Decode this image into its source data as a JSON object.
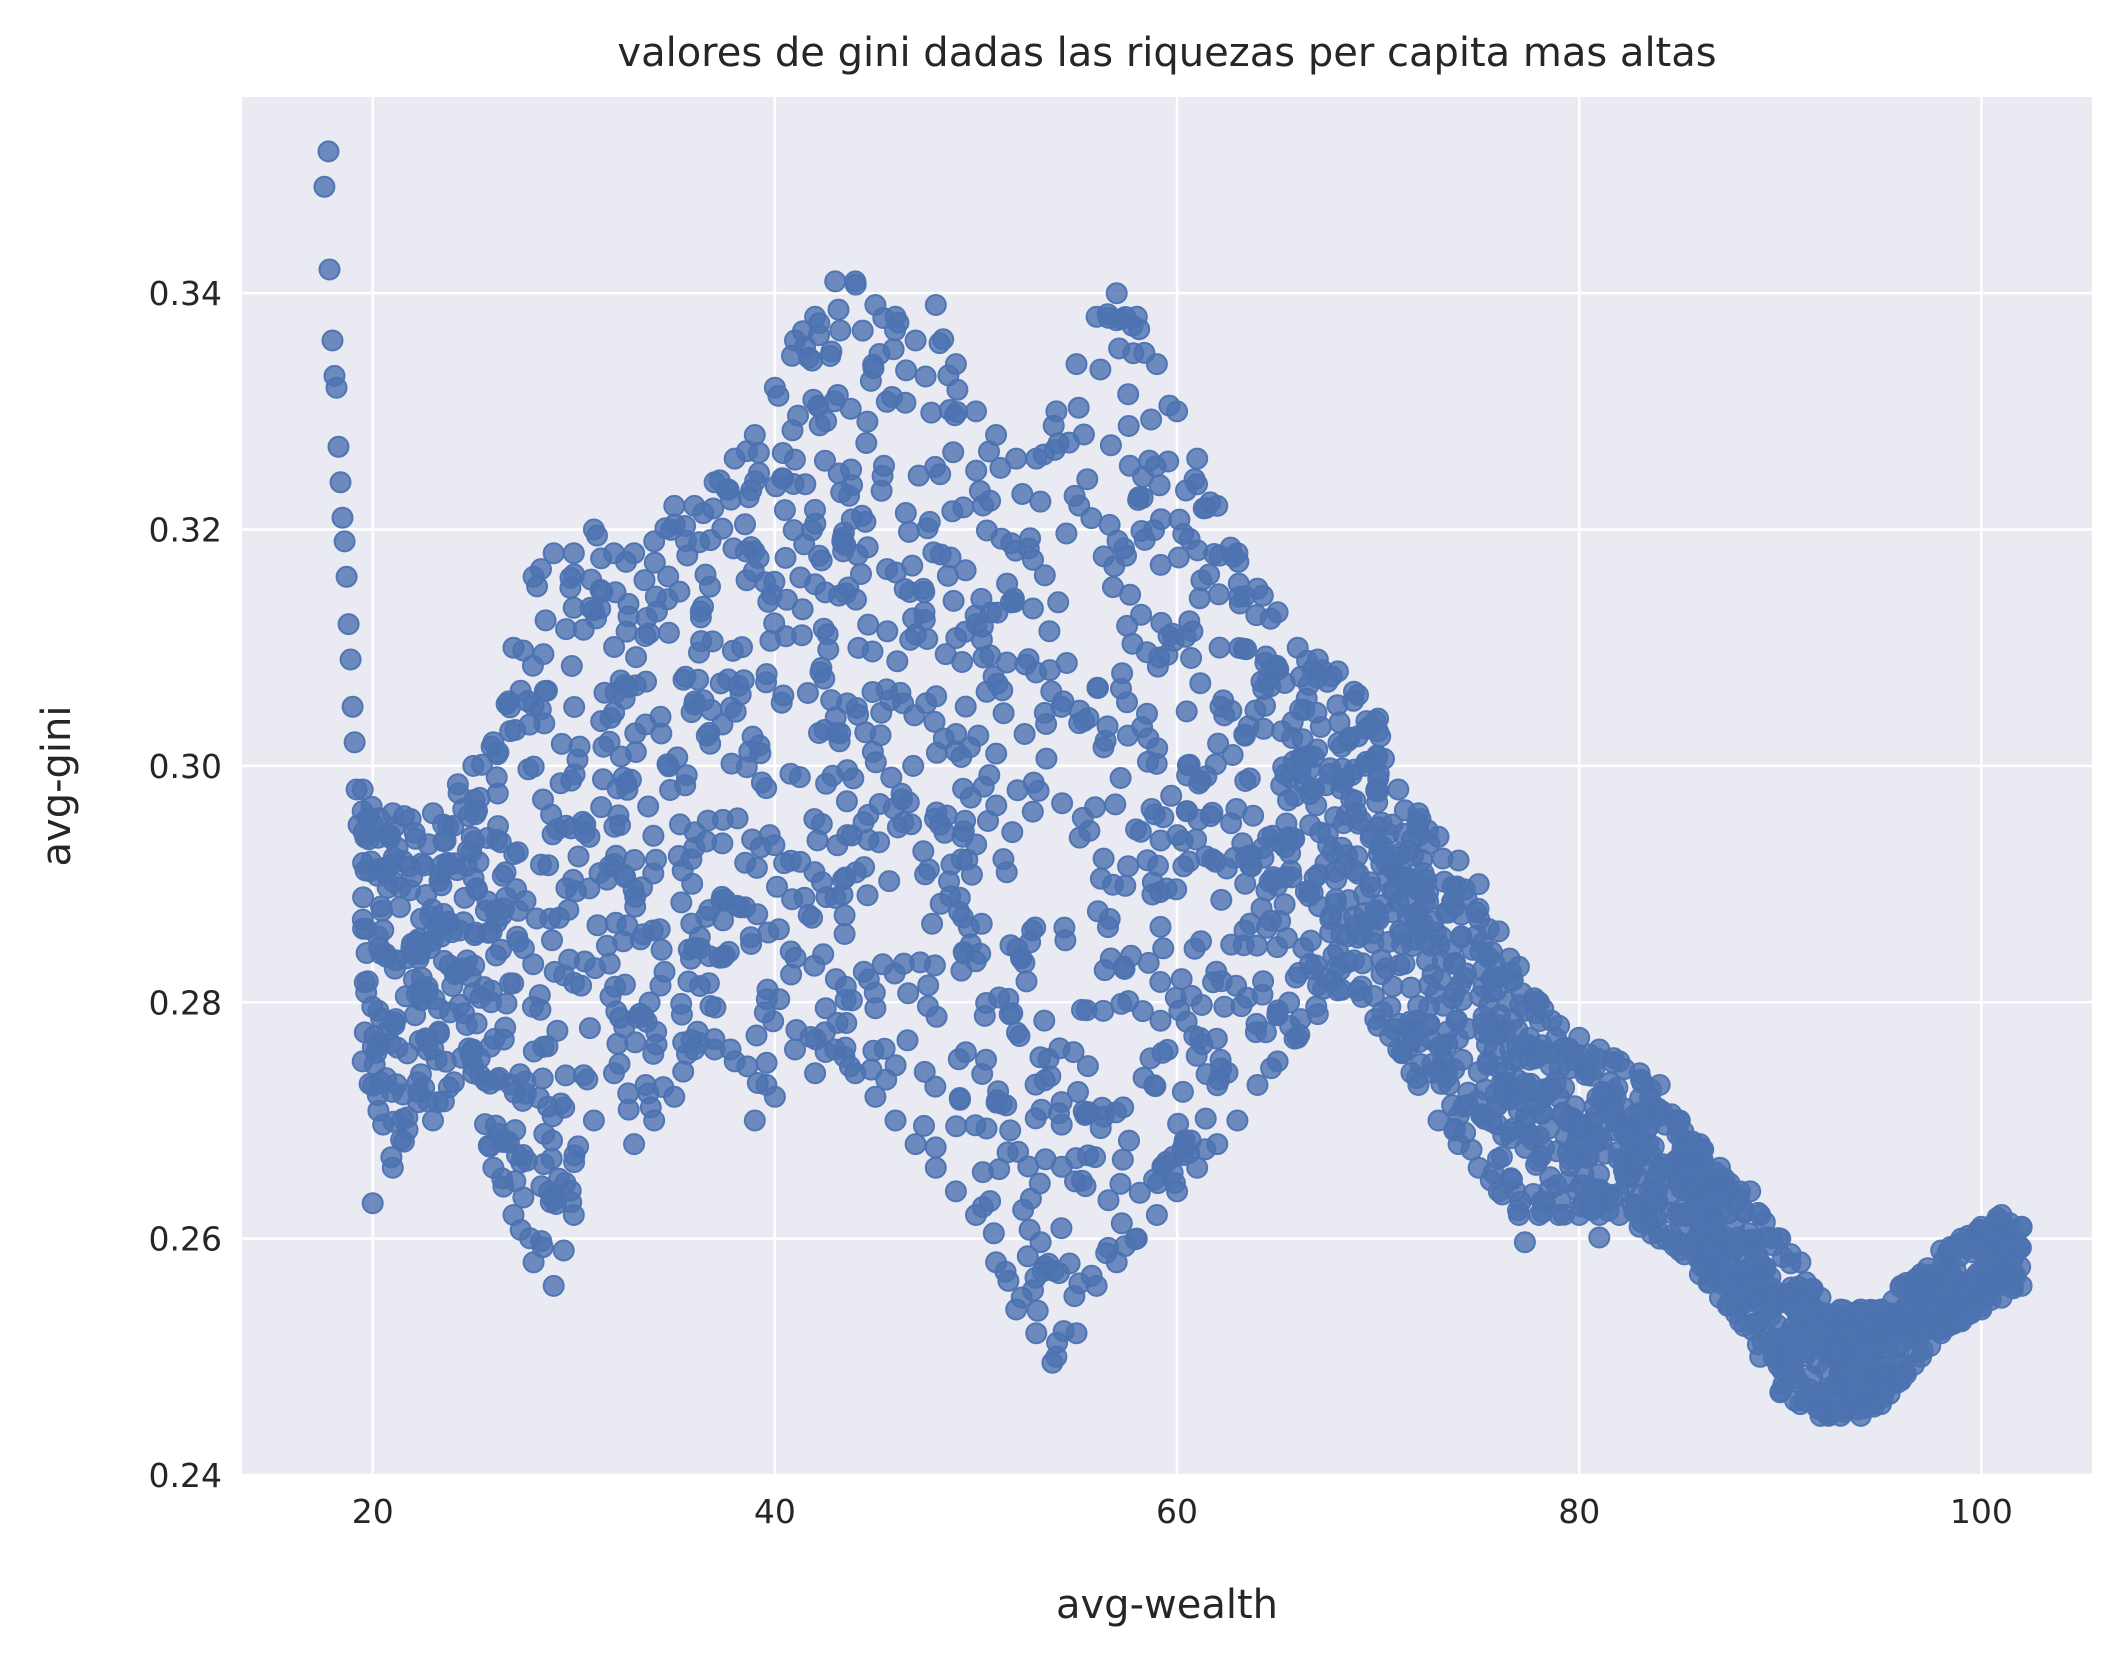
{
  "chart_data": {
    "type": "scatter",
    "title": "valores de gini dadas las riquezas per capita mas altas",
    "xlabel": "avg-wealth",
    "ylabel": "avg-gini",
    "xlim": [
      13.5,
      105.5
    ],
    "ylim": [
      0.24,
      0.3566
    ],
    "xticks": [
      20,
      40,
      60,
      80,
      100
    ],
    "yticks": [
      0.24,
      0.26,
      0.28,
      0.3,
      0.32,
      0.34
    ],
    "xtick_labels": [
      "20",
      "40",
      "60",
      "80",
      "100"
    ],
    "ytick_labels": [
      "0.24",
      "0.26",
      "0.28",
      "0.30",
      "0.32",
      "0.34"
    ],
    "grid": true,
    "legend": "none",
    "colors": {
      "background": "#eaeaf2",
      "grid": "#ffffff",
      "marker": "#4c72b0",
      "text": "#262626"
    },
    "series": [
      {
        "envelope": {
          "x": [
            19.5,
            21,
            23,
            25,
            26,
            27,
            28,
            29,
            30,
            31,
            32,
            33,
            34,
            35,
            36,
            37,
            38,
            39,
            40,
            41,
            42,
            43,
            44,
            45,
            46,
            47,
            48,
            49,
            50,
            51,
            52,
            53,
            54,
            55,
            56,
            57,
            58,
            59,
            60,
            61,
            62,
            63,
            64,
            65,
            66,
            67,
            68,
            69,
            70,
            71,
            72,
            73,
            74,
            75,
            76,
            77,
            78,
            79,
            80,
            81,
            82,
            83,
            84,
            85,
            86,
            87,
            88,
            89,
            90,
            91,
            92,
            93,
            94,
            95,
            96,
            97,
            98,
            99,
            100,
            101,
            102
          ],
          "y_low": [
            0.275,
            0.266,
            0.27,
            0.274,
            0.266,
            0.262,
            0.258,
            0.256,
            0.262,
            0.27,
            0.274,
            0.268,
            0.27,
            0.272,
            0.276,
            0.276,
            0.275,
            0.27,
            0.272,
            0.276,
            0.274,
            0.276,
            0.274,
            0.272,
            0.27,
            0.268,
            0.266,
            0.264,
            0.262,
            0.258,
            0.254,
            0.252,
            0.25,
            0.252,
            0.256,
            0.258,
            0.26,
            0.262,
            0.264,
            0.266,
            0.268,
            0.27,
            0.273,
            0.275,
            0.277,
            0.279,
            0.281,
            0.281,
            0.278,
            0.276,
            0.273,
            0.27,
            0.268,
            0.266,
            0.264,
            0.262,
            0.262,
            0.262,
            0.262,
            0.262,
            0.262,
            0.261,
            0.26,
            0.259,
            0.257,
            0.255,
            0.253,
            0.25,
            0.247,
            0.246,
            0.245,
            0.245,
            0.245,
            0.246,
            0.248,
            0.25,
            0.252,
            0.253,
            0.254,
            0.255,
            0.256
          ],
          "y_high": [
            0.298,
            0.296,
            0.296,
            0.3,
            0.302,
            0.31,
            0.316,
            0.318,
            0.318,
            0.32,
            0.318,
            0.318,
            0.319,
            0.322,
            0.322,
            0.324,
            0.326,
            0.328,
            0.332,
            0.336,
            0.338,
            0.341,
            0.341,
            0.339,
            0.338,
            0.336,
            0.339,
            0.334,
            0.33,
            0.328,
            0.326,
            0.326,
            0.33,
            0.334,
            0.338,
            0.34,
            0.338,
            0.334,
            0.33,
            0.326,
            0.322,
            0.318,
            0.315,
            0.313,
            0.31,
            0.309,
            0.308,
            0.306,
            0.304,
            0.298,
            0.296,
            0.294,
            0.292,
            0.29,
            0.286,
            0.283,
            0.28,
            0.278,
            0.277,
            0.276,
            0.275,
            0.274,
            0.273,
            0.27,
            0.268,
            0.266,
            0.264,
            0.262,
            0.26,
            0.258,
            0.255,
            0.254,
            0.254,
            0.254,
            0.256,
            0.257,
            0.259,
            0.26,
            0.261,
            0.262,
            0.261
          ]
        },
        "spike": {
          "x": [
            17.6,
            17.8,
            17.85,
            18.0,
            18.1,
            18.2,
            18.3,
            18.4,
            18.5,
            18.6,
            18.7,
            18.8,
            18.9,
            19.0,
            19.1,
            19.2,
            19.3
          ],
          "y": [
            0.349,
            0.352,
            0.342,
            0.336,
            0.333,
            0.332,
            0.327,
            0.324,
            0.321,
            0.319,
            0.316,
            0.312,
            0.309,
            0.305,
            0.302,
            0.298,
            0.295
          ]
        },
        "outliers": {
          "x": [
            20.0,
            29.5,
            77.3,
            81.0,
            85.8,
            88.5,
            53.8
          ],
          "y": [
            0.263,
            0.259,
            0.2597,
            0.2601,
            0.2599,
            0.264,
            0.2495
          ]
        }
      }
    ]
  }
}
